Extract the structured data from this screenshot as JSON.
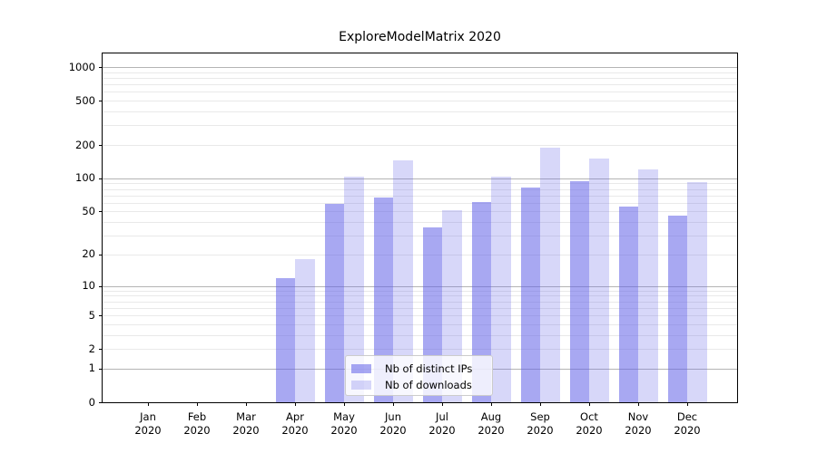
{
  "chart_data": {
    "type": "bar",
    "title": "ExploreModelMatrix 2020",
    "categories": [
      "Jan",
      "Feb",
      "Mar",
      "Apr",
      "May",
      "Jun",
      "Jul",
      "Aug",
      "Sep",
      "Oct",
      "Nov",
      "Dec"
    ],
    "year_label": "2020",
    "series": [
      {
        "name": "Nb of distinct IPs",
        "values": [
          0,
          0,
          0,
          12,
          59,
          67,
          36,
          61,
          82,
          95,
          56,
          46
        ],
        "fill": "rgba(97,97,232,0.55)"
      },
      {
        "name": "Nb of downloads",
        "values": [
          0,
          0,
          0,
          18,
          104,
          145,
          51,
          103,
          190,
          152,
          120,
          92
        ],
        "fill": "rgba(97,97,232,0.25)"
      }
    ],
    "xlabel": "",
    "ylabel": "",
    "yscale": "log1p",
    "ylim": [
      0,
      1323
    ],
    "y_ticks": [
      0,
      1,
      2,
      5,
      10,
      20,
      50,
      100,
      200,
      500,
      1000
    ],
    "grid": {
      "major_values": [
        1,
        10,
        100,
        1000
      ],
      "major_color": "#b4b4b4",
      "minor_color": "#e9e9e9"
    },
    "legend_position": "lower-center",
    "colors": {
      "bar_ips_rendered": "#a6a6f2",
      "bar_downloads_rendered": "#d8d8f9",
      "axis": "#000000",
      "background": "#ffffff"
    }
  }
}
